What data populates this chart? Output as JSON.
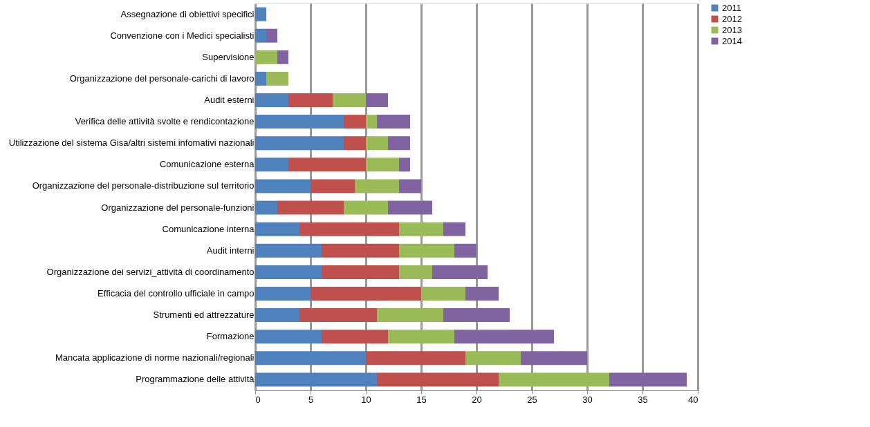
{
  "chart_data": {
    "type": "bar",
    "orientation": "horizontal",
    "stacked": true,
    "categories": [
      "Assegnazione di obiettivi specifici",
      "Convenzione con i Medici  specialisti",
      "Supervisione",
      "Organizzazione del personale-carichi di lavoro",
      "Audit esterni",
      "Verifica delle attività  svolte e rendicontazione",
      "Utilizzazione  del sistema Gisa/altri sistemi  infomativi nazionali",
      "Comunicazione esterna",
      "Organizzazione del personale-distribuzione sul territorio",
      "Organizzazione del personale-funzioni",
      "Comunicazione interna",
      "Audit interni",
      "Organizzazione dei servizi_attività di coordinamento",
      "Efficacia del controllo ufficiale in campo",
      "Strumenti ed attrezzature",
      "Formazione",
      "Mancata applicazione di norme nazionali/regionali",
      "Programmazione delle attività"
    ],
    "series": [
      {
        "name": "2011",
        "color": "#4f81bd",
        "values": [
          1,
          1,
          0,
          1,
          3,
          8,
          8,
          3,
          5,
          2,
          4,
          6,
          6,
          5,
          4,
          6,
          10,
          11
        ]
      },
      {
        "name": "2012",
        "color": "#c0504d",
        "values": [
          0,
          0,
          0,
          0,
          4,
          2,
          2,
          7,
          4,
          6,
          9,
          7,
          7,
          10,
          7,
          6,
          9,
          11
        ]
      },
      {
        "name": "2013",
        "color": "#9bbb59",
        "values": [
          0,
          0,
          2,
          2,
          3,
          1,
          2,
          3,
          4,
          4,
          4,
          5,
          3,
          4,
          6,
          6,
          5,
          10
        ]
      },
      {
        "name": "2014",
        "color": "#8064a2",
        "values": [
          0,
          1,
          1,
          0,
          2,
          3,
          2,
          1,
          2,
          4,
          2,
          2,
          5,
          3,
          6,
          9,
          6,
          7
        ]
      }
    ],
    "xlim": [
      0,
      40
    ],
    "xticks": [
      0,
      5,
      10,
      15,
      20,
      25,
      30,
      35,
      40
    ],
    "grid": "x",
    "legend": "right"
  }
}
